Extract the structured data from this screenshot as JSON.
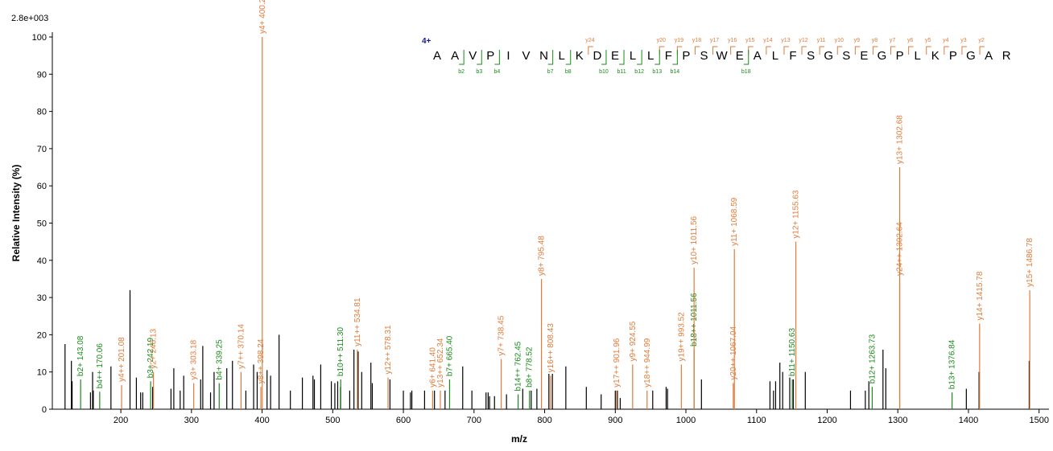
{
  "chart_data": {
    "type": "spectrum",
    "scale_label": "2.8e+003",
    "xlabel": "m/z",
    "ylabel": "Relative  Intensity (%)",
    "xlim": [
      103,
      1514
    ],
    "xticks": [
      200,
      300,
      400,
      500,
      600,
      700,
      800,
      900,
      1000,
      1100,
      1200,
      1300,
      1400,
      1500
    ],
    "ylim": [
      0,
      100
    ],
    "yticks": [
      0,
      10,
      20,
      30,
      40,
      50,
      60,
      70,
      80,
      90,
      100
    ],
    "series": [
      {
        "color": "#000000",
        "x": [
          121,
          130,
          131,
          157,
          160,
          161,
          186,
          213,
          222,
          228,
          231,
          245,
          271,
          275,
          284,
          289,
          313,
          316,
          327,
          332,
          350,
          358,
          377,
          388,
          393,
          407,
          412,
          424,
          440,
          457,
          472,
          474,
          483,
          498,
          503,
          507,
          511,
          524,
          530,
          536,
          541,
          554,
          556,
          581,
          600,
          610,
          612,
          630,
          644,
          659,
          684,
          697,
          717,
          720,
          722,
          729,
          746,
          769,
          781,
          789,
          806,
          811,
          830,
          859,
          880,
          900,
          903,
          907,
          953,
          972,
          974,
          1022,
          1119,
          1124,
          1127,
          1133,
          1137,
          1147,
          1152,
          1169,
          1233,
          1254,
          1259,
          1279,
          1283,
          1397,
          1415,
          1486
        ],
        "values": [
          17.5,
          13,
          7.5,
          4.5,
          10,
          5,
          11.5,
          32,
          8.5,
          4.5,
          4.5,
          6,
          5.5,
          11,
          5,
          9,
          8,
          17,
          4.5,
          10,
          11,
          13,
          5,
          12,
          10,
          10.5,
          9,
          20,
          5,
          8.5,
          9,
          8,
          12,
          7.5,
          7,
          7.5,
          6,
          5,
          16,
          15.5,
          10,
          12.5,
          7,
          8,
          5,
          4.5,
          5,
          5,
          5,
          5,
          11.5,
          5,
          4.5,
          4.5,
          3.5,
          3.5,
          4,
          5.5,
          5,
          5.5,
          9.5,
          9.5,
          11.5,
          6,
          4,
          5,
          5,
          3,
          5,
          6,
          5.5,
          8,
          7.5,
          5,
          7.5,
          12.5,
          10,
          8.5,
          8,
          10,
          5,
          5,
          7.5,
          16,
          11,
          5.5,
          10,
          13
        ]
      },
      {
        "color": "#1a8a1a",
        "x": [
          143.08,
          170.06,
          242.19,
          339.25,
          511.3,
          665.4,
          762.45,
          778.52,
          1011.56,
          1150.63,
          1263.73,
          1376.84
        ],
        "values": [
          8,
          4.7,
          7.5,
          7,
          8,
          8,
          4,
          5,
          16,
          8,
          6,
          4.5
        ],
        "labels": [
          "b2+ 143.08",
          "b4++ 170.06",
          "b3+ 242.19",
          "b4+ 339.25",
          "b10++ 511.30",
          "b7+ 665.40",
          "b14++ 762.45",
          "b8+ 778.52",
          "b18++ 1011.56",
          "b11+ 1150.63",
          "b12+ 1263.73",
          "b13+ 1376.84"
        ]
      },
      {
        "color": "#e07b39",
        "x": [
          201.08,
          246.13,
          303.18,
          370.14,
          398.24,
          400.2,
          534.81,
          578.31,
          641.4,
          652.34,
          738.45,
          795.48,
          808.43,
          901.96,
          924.55,
          944.99,
          993.52,
          1011.56,
          1067.04,
          1068.59,
          1155.63,
          1302.64,
          1302.68,
          1415.78,
          1486.78
        ],
        "values": [
          6.5,
          10,
          7,
          10,
          6,
          100,
          16,
          8.5,
          5,
          5,
          13.5,
          35,
          9,
          5,
          12,
          5,
          12,
          38,
          7,
          43,
          45,
          35,
          65,
          23,
          32
        ],
        "labels": [
          "y4++ 201.08",
          "y2+ 246.13",
          "y3+ 303.18",
          "y7++ 370.14",
          "y8++ 398.24",
          "y4+ 400.2",
          "y11++ 534.81",
          "y12++ 578.31",
          "y6+ 641.40",
          "y13++ 652.34",
          "y7+ 738.45",
          "y8+ 795.48",
          "y16++ 808.43",
          "y17++ 901.96",
          "y9+ 924.55",
          "y18++ 944.99",
          "y19++ 993.52",
          "y10+ 1011.56",
          "y20++ 1067.04",
          "y11+ 1068.59",
          "y12+ 1155.63",
          "y24++ 1302.64",
          "y13+ 1302.68",
          "y14+ 1415.78",
          "y15+ 1486.78"
        ]
      }
    ],
    "sequence": {
      "charge": "4+",
      "residues": [
        "A",
        "A",
        "V",
        "P",
        "I",
        "V",
        "N",
        "L",
        "K",
        "D",
        "E",
        "L",
        "L",
        "F",
        "P",
        "S",
        "W",
        "E",
        "A",
        "L",
        "F",
        "S",
        "G",
        "S",
        "E",
        "G",
        "P",
        "L",
        "K",
        "P",
        "G",
        "A",
        "R"
      ],
      "y_ions": [
        null,
        null,
        null,
        null,
        null,
        null,
        null,
        null,
        null,
        "y24",
        null,
        null,
        null,
        "y20",
        "y19",
        "y18",
        "y17",
        "y16",
        "y15",
        "y14",
        "y13",
        "y12",
        "y11",
        "y10",
        "y9",
        "y8",
        "y7",
        "y6",
        "y5",
        "y4",
        "y3",
        "y2",
        null
      ],
      "b_ions": [
        null,
        "b2",
        "b3",
        "b4",
        null,
        null,
        "b7",
        "b8",
        null,
        "b10",
        "b11",
        "b12",
        "b13",
        "b14",
        null,
        null,
        null,
        "b18",
        null,
        null,
        null,
        null,
        null,
        null,
        null,
        null,
        null,
        null,
        null,
        null,
        null,
        null,
        null
      ]
    }
  }
}
